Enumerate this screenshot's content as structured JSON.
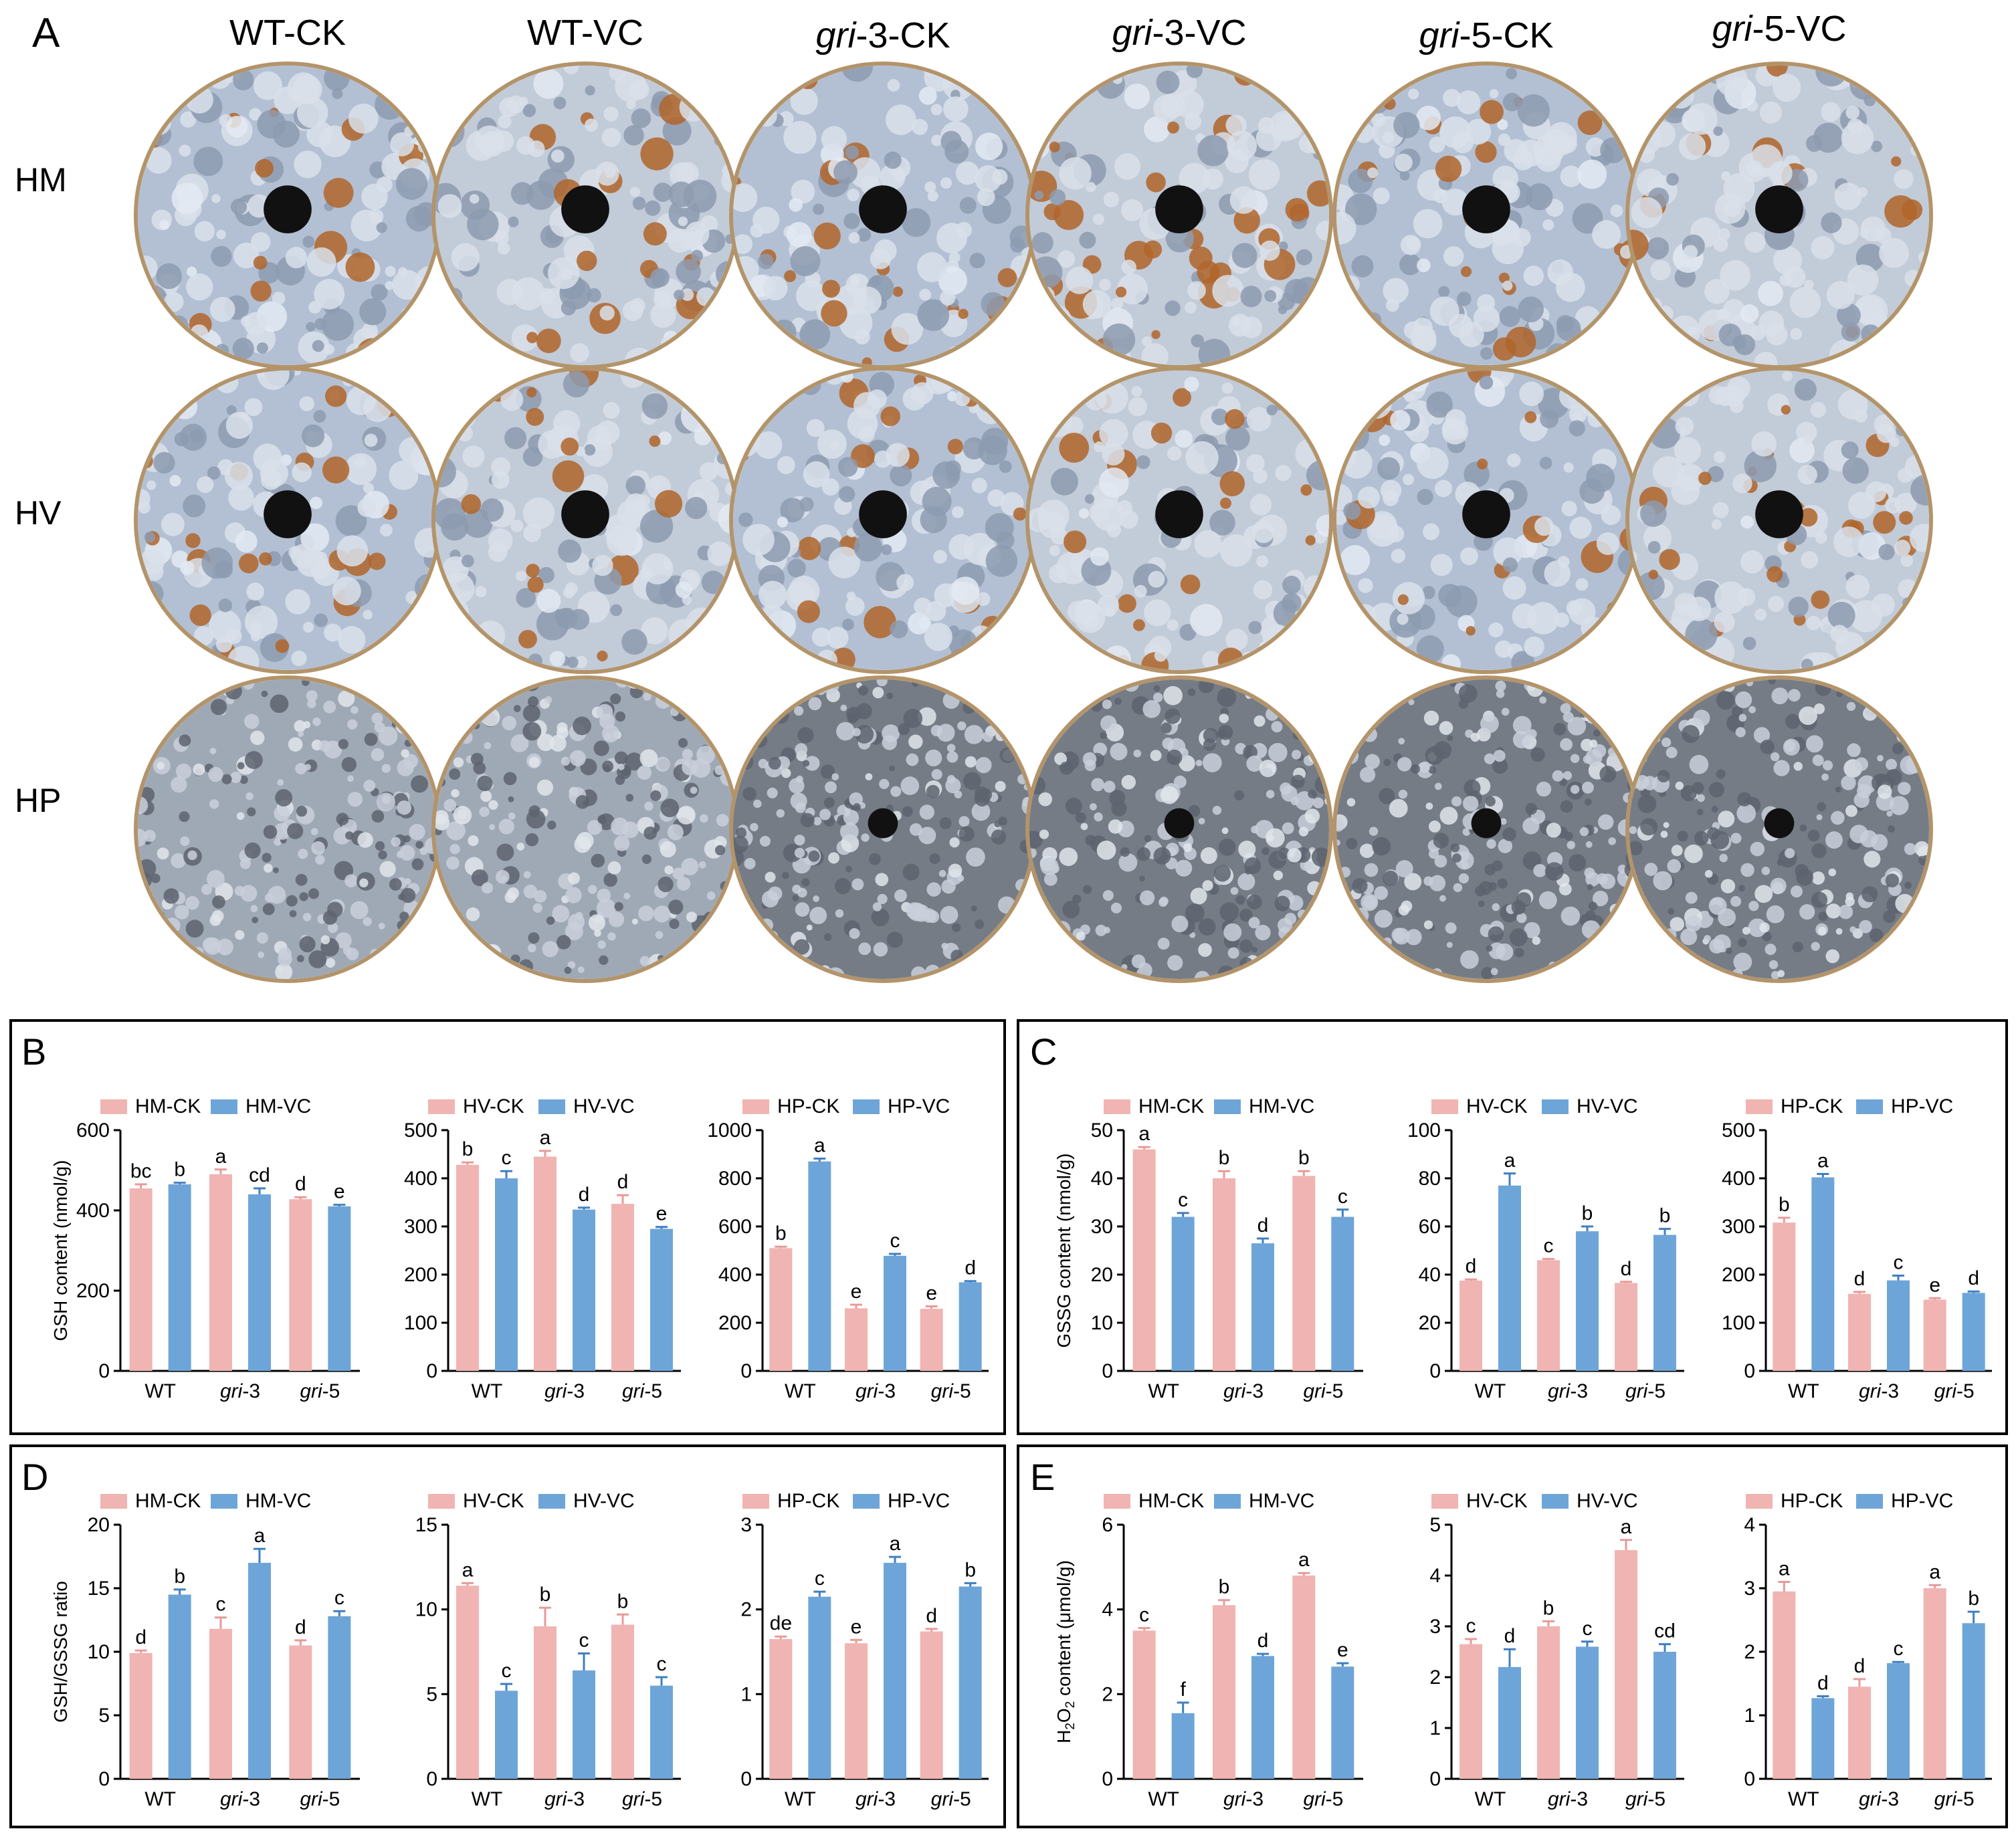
{
  "photo_panel": {
    "label": "A",
    "columns": [
      {
        "prefix": "WT",
        "suffix": "-CK"
      },
      {
        "prefix": "WT",
        "suffix": "-VC"
      },
      {
        "prefix": "gri",
        "suffix": "-3-CK"
      },
      {
        "prefix": "gri",
        "suffix": "-3-VC"
      },
      {
        "prefix": "gri",
        "suffix": "-5-CK"
      },
      {
        "prefix": "gri",
        "suffix": "-5-VC"
      }
    ],
    "rows": [
      "HM",
      "HV",
      "HP"
    ]
  },
  "panels": [
    {
      "label": "B"
    },
    {
      "label": "C"
    },
    {
      "label": "D"
    },
    {
      "label": "E"
    }
  ],
  "chart_data": [
    {
      "panel": "B",
      "type": "bar",
      "categories": [
        "WT",
        "gri-3",
        "gri-5"
      ],
      "ylabel": "GSH content (nmol/g)",
      "ylim": [
        0,
        600
      ],
      "yticks": [
        0,
        200,
        400,
        600
      ],
      "series": [
        {
          "name": "HM-CK",
          "values": [
            455,
            490,
            428
          ],
          "errors": [
            10,
            12,
            5
          ],
          "letters": [
            "bc",
            "a",
            "d"
          ]
        },
        {
          "name": "HM-VC",
          "values": [
            465,
            440,
            410
          ],
          "errors": [
            4,
            15,
            4
          ],
          "letters": [
            "b",
            "cd",
            "e"
          ]
        }
      ]
    },
    {
      "panel": "B",
      "type": "bar",
      "categories": [
        "WT",
        "gri-3",
        "gri-5"
      ],
      "ylabel": "",
      "ylim": [
        0,
        500
      ],
      "yticks": [
        0,
        100,
        200,
        300,
        400,
        500
      ],
      "series": [
        {
          "name": "HV-CK",
          "values": [
            428,
            445,
            347
          ],
          "errors": [
            5,
            12,
            18
          ],
          "letters": [
            "b",
            "a",
            "d"
          ]
        },
        {
          "name": "HV-VC",
          "values": [
            400,
            335,
            295
          ],
          "errors": [
            15,
            4,
            4
          ],
          "letters": [
            "c",
            "d",
            "e"
          ]
        }
      ]
    },
    {
      "panel": "B",
      "type": "bar",
      "categories": [
        "WT",
        "gri-3",
        "gri-5"
      ],
      "ylabel": "",
      "ylim": [
        0,
        1000
      ],
      "yticks": [
        0,
        200,
        400,
        600,
        800,
        1000
      ],
      "series": [
        {
          "name": "HP-CK",
          "values": [
            510,
            260,
            258
          ],
          "errors": [
            6,
            15,
            10
          ],
          "letters": [
            "b",
            "e",
            "e"
          ]
        },
        {
          "name": "HP-VC",
          "values": [
            870,
            478,
            368
          ],
          "errors": [
            12,
            8,
            5
          ],
          "letters": [
            "a",
            "c",
            "d"
          ]
        }
      ]
    },
    {
      "panel": "C",
      "type": "bar",
      "categories": [
        "WT",
        "gri-3",
        "gri-5"
      ],
      "ylabel": "GSSG content (nmol/g)",
      "ylim": [
        0,
        50
      ],
      "yticks": [
        0,
        10,
        20,
        30,
        40,
        50
      ],
      "series": [
        {
          "name": "HM-CK",
          "values": [
            46,
            40,
            40.5
          ],
          "errors": [
            0.5,
            1.5,
            1.0
          ],
          "letters": [
            "a",
            "b",
            "b"
          ]
        },
        {
          "name": "HM-VC",
          "values": [
            32,
            26.5,
            32
          ],
          "errors": [
            0.8,
            1.0,
            1.5
          ],
          "letters": [
            "c",
            "d",
            "c"
          ]
        }
      ]
    },
    {
      "panel": "C",
      "type": "bar",
      "categories": [
        "WT",
        "gri-3",
        "gri-5"
      ],
      "ylabel": "",
      "ylim": [
        0,
        100
      ],
      "yticks": [
        0,
        20,
        40,
        60,
        80,
        100
      ],
      "series": [
        {
          "name": "HV-CK",
          "values": [
            37.5,
            46,
            36.5
          ],
          "errors": [
            0.5,
            0.5,
            0.5
          ],
          "letters": [
            "d",
            "c",
            "d"
          ]
        },
        {
          "name": "HV-VC",
          "values": [
            77,
            58,
            56.5
          ],
          "errors": [
            5,
            2,
            2.5
          ],
          "letters": [
            "a",
            "b",
            "b"
          ]
        }
      ]
    },
    {
      "panel": "C",
      "type": "bar",
      "categories": [
        "WT",
        "gri-3",
        "gri-5"
      ],
      "ylabel": "",
      "ylim": [
        0,
        500
      ],
      "yticks": [
        0,
        100,
        200,
        300,
        400,
        500
      ],
      "series": [
        {
          "name": "HP-CK",
          "values": [
            308,
            160,
            148
          ],
          "errors": [
            10,
            4,
            3
          ],
          "letters": [
            "b",
            "d",
            "e"
          ]
        },
        {
          "name": "HP-VC",
          "values": [
            402,
            188,
            162
          ],
          "errors": [
            7,
            10,
            3
          ],
          "letters": [
            "a",
            "c",
            "d"
          ]
        }
      ]
    },
    {
      "panel": "D",
      "type": "bar",
      "categories": [
        "WT",
        "gri-3",
        "gri-5"
      ],
      "ylabel": "GSH/GSSG ratio",
      "ylim": [
        0,
        20
      ],
      "yticks": [
        0,
        5,
        10,
        15,
        20
      ],
      "series": [
        {
          "name": "HM-CK",
          "values": [
            9.9,
            11.8,
            10.5
          ],
          "errors": [
            0.2,
            0.9,
            0.4
          ],
          "letters": [
            "d",
            "c",
            "d"
          ]
        },
        {
          "name": "HM-VC",
          "values": [
            14.5,
            17.0,
            12.8
          ],
          "errors": [
            0.4,
            1.1,
            0.4
          ],
          "letters": [
            "b",
            "a",
            "c"
          ]
        }
      ]
    },
    {
      "panel": "D",
      "type": "bar",
      "categories": [
        "WT",
        "gri-3",
        "gri-5"
      ],
      "ylabel": "",
      "ylim": [
        0,
        15
      ],
      "yticks": [
        0,
        5,
        10,
        15
      ],
      "series": [
        {
          "name": "HV-CK",
          "values": [
            11.4,
            9.0,
            9.1
          ],
          "errors": [
            0.15,
            1.1,
            0.6
          ],
          "letters": [
            "a",
            "b",
            "b"
          ]
        },
        {
          "name": "HV-VC",
          "values": [
            5.2,
            6.4,
            5.5
          ],
          "errors": [
            0.4,
            1.0,
            0.5
          ],
          "letters": [
            "c",
            "c",
            "c"
          ]
        }
      ]
    },
    {
      "panel": "D",
      "type": "bar",
      "categories": [
        "WT",
        "gri-3",
        "gri-5"
      ],
      "ylabel": "",
      "ylim": [
        0,
        3
      ],
      "yticks": [
        0,
        1,
        2,
        3
      ],
      "series": [
        {
          "name": "HP-CK",
          "values": [
            1.65,
            1.6,
            1.74
          ],
          "errors": [
            0.03,
            0.04,
            0.03
          ],
          "letters": [
            "de",
            "e",
            "d"
          ]
        },
        {
          "name": "HP-VC",
          "values": [
            2.15,
            2.55,
            2.27
          ],
          "errors": [
            0.06,
            0.07,
            0.04
          ],
          "letters": [
            "c",
            "a",
            "b"
          ]
        }
      ]
    },
    {
      "panel": "E",
      "type": "bar",
      "categories": [
        "WT",
        "gri-3",
        "gri-5"
      ],
      "ylabel": "H2O2 content (μmol/g)",
      "ylim": [
        0,
        6
      ],
      "yticks": [
        0,
        2,
        4,
        6
      ],
      "series": [
        {
          "name": "HM-CK",
          "values": [
            3.5,
            4.1,
            4.8
          ],
          "errors": [
            0.06,
            0.12,
            0.06
          ],
          "letters": [
            "c",
            "b",
            "a"
          ]
        },
        {
          "name": "HM-VC",
          "values": [
            1.55,
            2.9,
            2.65
          ],
          "errors": [
            0.25,
            0.05,
            0.08
          ],
          "letters": [
            "f",
            "d",
            "e"
          ]
        }
      ]
    },
    {
      "panel": "E",
      "type": "bar",
      "categories": [
        "WT",
        "gri-3",
        "gri-5"
      ],
      "ylabel": "",
      "ylim": [
        0,
        5
      ],
      "yticks": [
        0,
        1,
        2,
        3,
        4,
        5
      ],
      "series": [
        {
          "name": "HV-CK",
          "values": [
            2.65,
            3.0,
            4.5
          ],
          "errors": [
            0.1,
            0.1,
            0.2
          ],
          "letters": [
            "c",
            "b",
            "a"
          ]
        },
        {
          "name": "HV-VC",
          "values": [
            2.2,
            2.6,
            2.5
          ],
          "errors": [
            0.35,
            0.1,
            0.15
          ],
          "letters": [
            "d",
            "c",
            "cd"
          ]
        }
      ]
    },
    {
      "panel": "E",
      "type": "bar",
      "categories": [
        "WT",
        "gri-3",
        "gri-5"
      ],
      "ylabel": "",
      "ylim": [
        0,
        4
      ],
      "yticks": [
        0,
        1,
        2,
        3,
        4
      ],
      "series": [
        {
          "name": "HP-CK",
          "values": [
            2.95,
            1.45,
            3.0
          ],
          "errors": [
            0.15,
            0.12,
            0.05
          ],
          "letters": [
            "a",
            "d",
            "a"
          ]
        },
        {
          "name": "HP-VC",
          "values": [
            1.27,
            1.82,
            2.45
          ],
          "errors": [
            0.03,
            0.02,
            0.18
          ],
          "letters": [
            "d",
            "c",
            "b"
          ]
        }
      ]
    }
  ],
  "colors": {
    "ck": "#f0b4b2",
    "vc": "#6ea5d8",
    "text": "#000000"
  }
}
